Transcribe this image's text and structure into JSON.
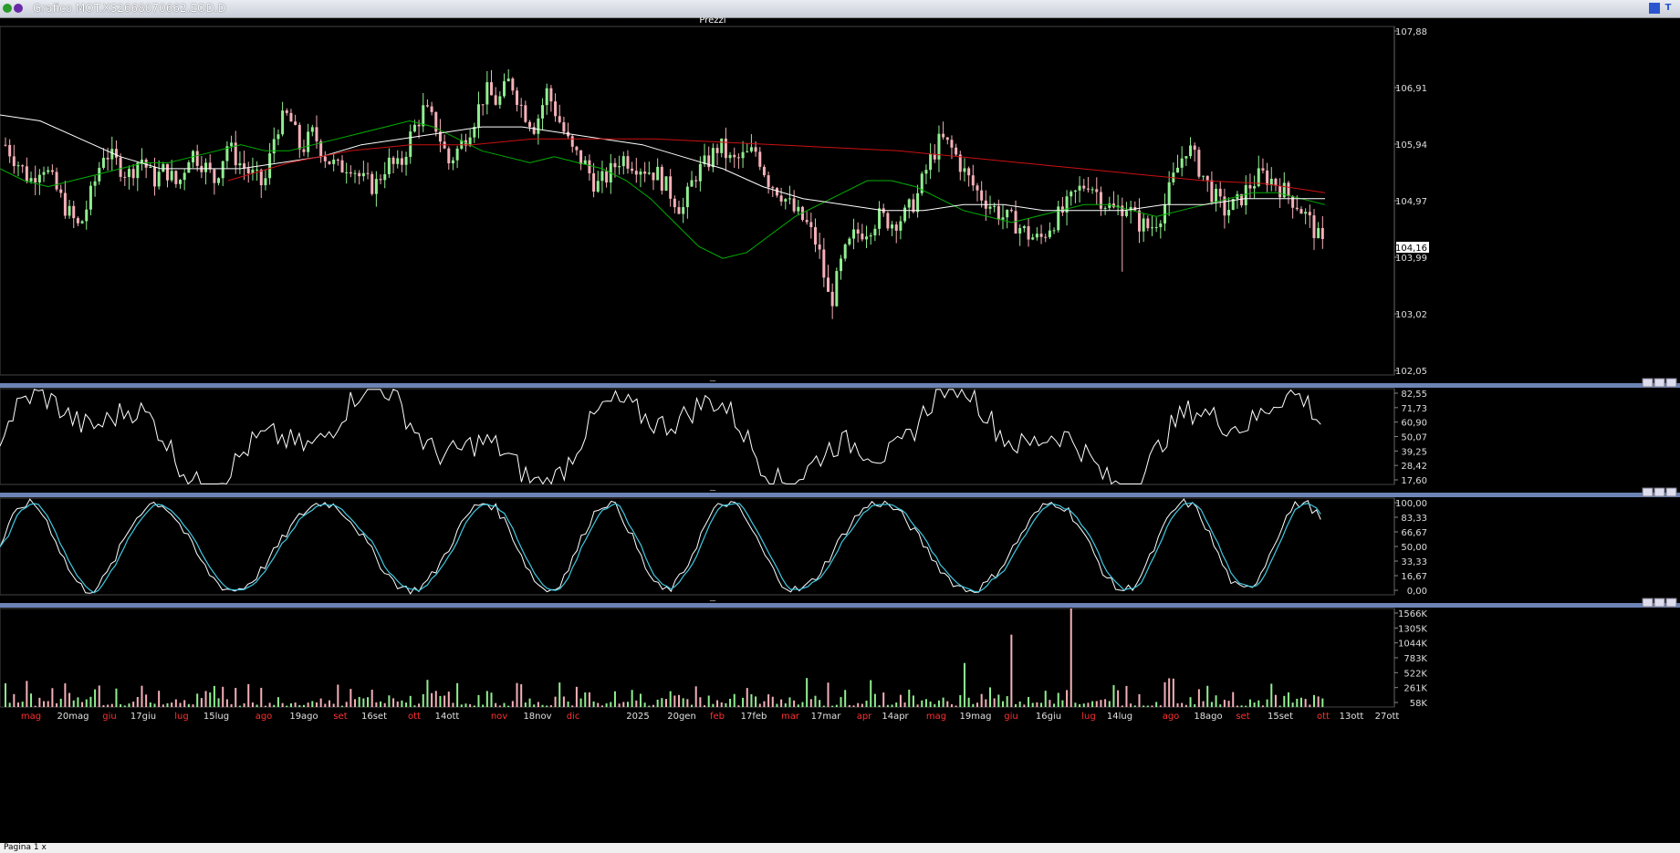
{
  "window": {
    "title": "Grafico MOT.XS2668070662.EOD.D"
  },
  "tabs": {
    "page": "Pagina 1",
    "close": "x"
  },
  "colors": {
    "bg": "#000000",
    "up": "#90ee90",
    "down": "#f4b0b8",
    "ma_short": "#00b000",
    "ma_mid": "#ffffff",
    "ma_long": "#cc1111",
    "stoch_k": "#ffffff",
    "stoch_d": "#40c8e0",
    "grid_sep": "#8aa0c8",
    "red_month": "#ff3030",
    "yellow_label": "#e8e030"
  },
  "chart_data": [
    {
      "type": "candlestick",
      "title": "Prezzi",
      "ylim": [
        102.05,
        107.88
      ],
      "y_ticks": [
        "107,88",
        "106,91",
        "105,94",
        "104,97",
        "103,99",
        "103,02",
        "102,05"
      ],
      "last_price_label": "104,16",
      "series": [
        {
          "name": "",
          "kind": "close",
          "values": [
            105.9,
            105.6,
            105.3,
            105.6,
            105.2,
            104.8,
            104.5,
            105.1,
            105.8,
            105.6,
            105.4,
            105.7,
            105.3,
            105.5,
            105.2,
            105.8,
            105.6,
            105.3,
            105.9,
            105.6,
            105.4,
            105.2,
            106.2,
            106.4,
            105.8,
            106.1,
            105.7,
            105.5,
            105.6,
            105.3,
            105.2,
            105.6,
            105.5,
            106.1,
            106.5,
            106.2,
            105.6,
            105.9,
            106.3,
            106.8,
            106.6,
            107.0,
            106.5,
            106.2,
            106.8,
            106.3,
            105.8,
            105.6,
            105.2,
            105.4,
            105.7,
            105.6,
            105.5,
            105.4,
            105.1,
            104.8,
            105.4,
            105.6,
            105.9,
            105.6,
            105.7,
            105.8,
            105.3,
            105.1,
            104.8,
            104.6,
            104.2,
            103.2,
            104.0,
            104.4,
            104.5,
            104.7,
            104.6,
            104.7,
            105.0,
            105.6,
            106.0,
            105.8,
            105.4,
            105.1,
            104.9,
            104.7,
            104.6,
            104.4,
            104.3,
            104.6,
            104.8,
            105.1,
            105.3,
            105.0,
            104.8,
            104.9,
            104.6,
            104.5,
            104.8,
            105.4,
            105.9,
            105.5,
            105.1,
            104.8,
            104.9,
            105.2,
            105.4,
            105.3,
            105.1,
            104.9,
            104.6,
            104.2
          ]
        },
        {
          "name": "",
          "kind": "ma_short",
          "values": [
            105.5,
            105.3,
            105.2,
            105.3,
            105.4,
            105.5,
            105.6,
            105.6,
            105.7,
            105.8,
            105.9,
            105.8,
            105.8,
            105.9,
            106.0,
            106.1,
            106.2,
            106.3,
            106.2,
            106.0,
            105.8,
            105.7,
            105.6,
            105.7,
            105.6,
            105.5,
            105.3,
            105.0,
            104.6,
            104.2,
            104.0,
            104.1,
            104.4,
            104.7,
            104.9,
            105.1,
            105.3,
            105.3,
            105.2,
            105.0,
            104.8,
            104.7,
            104.6,
            104.7,
            104.8,
            104.9,
            104.9,
            104.8,
            104.7,
            104.8,
            104.9,
            105.0,
            105.1,
            105.1,
            105.0,
            104.9
          ]
        },
        {
          "name": "",
          "kind": "ma_mid",
          "values": [
            106.4,
            106.3,
            106.0,
            105.7,
            105.5,
            105.5,
            105.5,
            105.6,
            105.7,
            105.9,
            106.0,
            106.1,
            106.2,
            106.2,
            106.1,
            106.0,
            105.9,
            105.7,
            105.5,
            105.2,
            105.0,
            104.9,
            104.8,
            104.8,
            104.9,
            104.9,
            104.8,
            104.8,
            104.8,
            104.9,
            104.9,
            105.0,
            105.0,
            105.0
          ]
        },
        {
          "name": "",
          "kind": "ma_long",
          "values": [
            105.3,
            105.6,
            105.8,
            105.9,
            105.9,
            106.0,
            106.0,
            106.0,
            105.95,
            105.9,
            105.85,
            105.8,
            105.7,
            105.6,
            105.5,
            105.4,
            105.3,
            105.25,
            105.1
          ]
        }
      ]
    },
    {
      "type": "line",
      "ylim": [
        17.6,
        82.55
      ],
      "y_ticks": [
        "82,55",
        "71,73",
        "60,90",
        "50,07",
        "39,25",
        "28,42",
        "17,60"
      ]
    },
    {
      "type": "line",
      "ylim": [
        0,
        100
      ],
      "y_ticks": [
        "100,00",
        "83,33",
        "66,67",
        "50,00",
        "33,33",
        "16,67",
        "0,00"
      ]
    },
    {
      "type": "bar",
      "ylim": [
        0,
        1566
      ],
      "y_ticks": [
        "1566K",
        "1305K",
        "1044K",
        "783K",
        "522K",
        "261K",
        "58K"
      ]
    }
  ],
  "x_axis": [
    {
      "label": "mag",
      "red": true
    },
    {
      "label": "20mag",
      "red": false
    },
    {
      "label": "giu",
      "red": true
    },
    {
      "label": "17giu",
      "red": false
    },
    {
      "label": "lug",
      "red": true
    },
    {
      "label": "15lug",
      "red": false
    },
    {
      "label": "ago",
      "red": true
    },
    {
      "label": "19ago",
      "red": false
    },
    {
      "label": "set",
      "red": true
    },
    {
      "label": "16set",
      "red": false
    },
    {
      "label": "ott",
      "red": true
    },
    {
      "label": "14ott",
      "red": false
    },
    {
      "label": "nov",
      "red": true
    },
    {
      "label": "18nov",
      "red": false
    },
    {
      "label": "dic",
      "red": true
    },
    {
      "label": "2025",
      "red": false
    },
    {
      "label": "20gen",
      "red": false
    },
    {
      "label": "feb",
      "red": true
    },
    {
      "label": "17feb",
      "red": false
    },
    {
      "label": "mar",
      "red": true
    },
    {
      "label": "17mar",
      "red": false
    },
    {
      "label": "apr",
      "red": true
    },
    {
      "label": "14apr",
      "red": false
    },
    {
      "label": "mag",
      "red": true
    },
    {
      "label": "19mag",
      "red": false
    },
    {
      "label": "giu",
      "red": true
    },
    {
      "label": "16giu",
      "red": false
    },
    {
      "label": "lug",
      "red": true
    },
    {
      "label": "14lug",
      "red": false
    },
    {
      "label": "ago",
      "red": true
    },
    {
      "label": "18ago",
      "red": false
    },
    {
      "label": "set",
      "red": true
    },
    {
      "label": "15set",
      "red": false
    },
    {
      "label": "ott",
      "red": true
    },
    {
      "label": "13ott",
      "red": false
    },
    {
      "label": "27ott",
      "red": false
    }
  ],
  "pane_handle": "—"
}
